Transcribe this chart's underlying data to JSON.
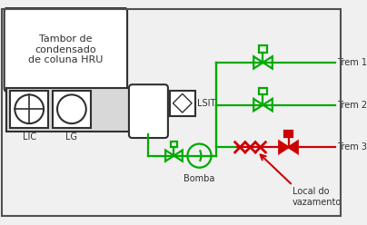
{
  "bg_color": "#f0f0f0",
  "border_color": "#505050",
  "green": "#00aa00",
  "red": "#cc0000",
  "dark": "#303030",
  "white": "#ffffff",
  "fig_w": 4.04,
  "fig_h": 2.48,
  "dpi": 100,
  "title_text": "Tambor de\ncondensado\nde coluna HRU",
  "label_LIC": "LIC",
  "label_LG": "LG",
  "label_LSIT": "LSIT",
  "label_Bomba": "Bomba",
  "label_Trem1": "Trem 1",
  "label_Trem2": "Trem 2",
  "label_Trem3": "Trem 3",
  "label_local": "Local do\nvazamento"
}
